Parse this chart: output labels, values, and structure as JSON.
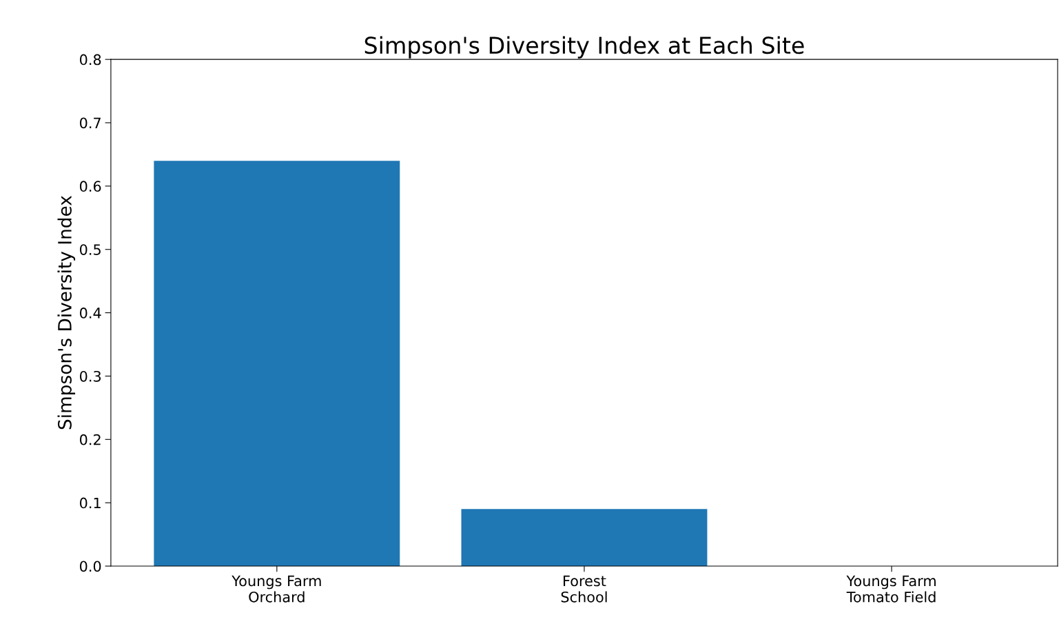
{
  "chart_data": {
    "type": "bar",
    "title": "Simpson's Diversity Index at Each Site",
    "ylabel": "Simpson's Diversity Index",
    "categories": [
      "Youngs Farm\nOrchard",
      "Forest\nSchool",
      "Youngs Farm\nTomato Field"
    ],
    "values": [
      0.64,
      0.09,
      0.0
    ],
    "color": "#1f77b4",
    "ylim": [
      0,
      0.8
    ],
    "yticks": [
      {
        "value": 0,
        "label": "0.0"
      },
      0.1,
      0.2,
      0.3,
      0.4,
      0.5,
      0.6,
      0.7,
      0.8
    ],
    "grid": false
  }
}
